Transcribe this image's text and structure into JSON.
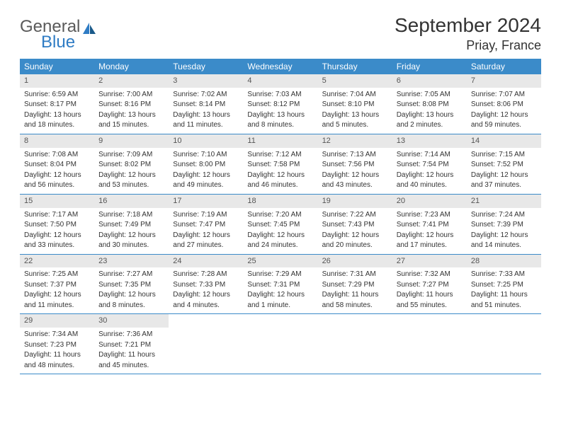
{
  "logo": {
    "word1": "General",
    "word2": "Blue"
  },
  "title": "September 2024",
  "location": "Priay, France",
  "colors": {
    "header_bg": "#3b8bc9",
    "header_text": "#ffffff",
    "daynum_bg": "#e8e8e8",
    "border": "#3b8bc9",
    "logo_gray": "#5a5a5a",
    "logo_blue": "#2f7cc4"
  },
  "weekdays": [
    "Sunday",
    "Monday",
    "Tuesday",
    "Wednesday",
    "Thursday",
    "Friday",
    "Saturday"
  ],
  "weeks": [
    [
      {
        "n": "1",
        "sr": "Sunrise: 6:59 AM",
        "ss": "Sunset: 8:17 PM",
        "d1": "Daylight: 13 hours",
        "d2": "and 18 minutes."
      },
      {
        "n": "2",
        "sr": "Sunrise: 7:00 AM",
        "ss": "Sunset: 8:16 PM",
        "d1": "Daylight: 13 hours",
        "d2": "and 15 minutes."
      },
      {
        "n": "3",
        "sr": "Sunrise: 7:02 AM",
        "ss": "Sunset: 8:14 PM",
        "d1": "Daylight: 13 hours",
        "d2": "and 11 minutes."
      },
      {
        "n": "4",
        "sr": "Sunrise: 7:03 AM",
        "ss": "Sunset: 8:12 PM",
        "d1": "Daylight: 13 hours",
        "d2": "and 8 minutes."
      },
      {
        "n": "5",
        "sr": "Sunrise: 7:04 AM",
        "ss": "Sunset: 8:10 PM",
        "d1": "Daylight: 13 hours",
        "d2": "and 5 minutes."
      },
      {
        "n": "6",
        "sr": "Sunrise: 7:05 AM",
        "ss": "Sunset: 8:08 PM",
        "d1": "Daylight: 13 hours",
        "d2": "and 2 minutes."
      },
      {
        "n": "7",
        "sr": "Sunrise: 7:07 AM",
        "ss": "Sunset: 8:06 PM",
        "d1": "Daylight: 12 hours",
        "d2": "and 59 minutes."
      }
    ],
    [
      {
        "n": "8",
        "sr": "Sunrise: 7:08 AM",
        "ss": "Sunset: 8:04 PM",
        "d1": "Daylight: 12 hours",
        "d2": "and 56 minutes."
      },
      {
        "n": "9",
        "sr": "Sunrise: 7:09 AM",
        "ss": "Sunset: 8:02 PM",
        "d1": "Daylight: 12 hours",
        "d2": "and 53 minutes."
      },
      {
        "n": "10",
        "sr": "Sunrise: 7:10 AM",
        "ss": "Sunset: 8:00 PM",
        "d1": "Daylight: 12 hours",
        "d2": "and 49 minutes."
      },
      {
        "n": "11",
        "sr": "Sunrise: 7:12 AM",
        "ss": "Sunset: 7:58 PM",
        "d1": "Daylight: 12 hours",
        "d2": "and 46 minutes."
      },
      {
        "n": "12",
        "sr": "Sunrise: 7:13 AM",
        "ss": "Sunset: 7:56 PM",
        "d1": "Daylight: 12 hours",
        "d2": "and 43 minutes."
      },
      {
        "n": "13",
        "sr": "Sunrise: 7:14 AM",
        "ss": "Sunset: 7:54 PM",
        "d1": "Daylight: 12 hours",
        "d2": "and 40 minutes."
      },
      {
        "n": "14",
        "sr": "Sunrise: 7:15 AM",
        "ss": "Sunset: 7:52 PM",
        "d1": "Daylight: 12 hours",
        "d2": "and 37 minutes."
      }
    ],
    [
      {
        "n": "15",
        "sr": "Sunrise: 7:17 AM",
        "ss": "Sunset: 7:50 PM",
        "d1": "Daylight: 12 hours",
        "d2": "and 33 minutes."
      },
      {
        "n": "16",
        "sr": "Sunrise: 7:18 AM",
        "ss": "Sunset: 7:49 PM",
        "d1": "Daylight: 12 hours",
        "d2": "and 30 minutes."
      },
      {
        "n": "17",
        "sr": "Sunrise: 7:19 AM",
        "ss": "Sunset: 7:47 PM",
        "d1": "Daylight: 12 hours",
        "d2": "and 27 minutes."
      },
      {
        "n": "18",
        "sr": "Sunrise: 7:20 AM",
        "ss": "Sunset: 7:45 PM",
        "d1": "Daylight: 12 hours",
        "d2": "and 24 minutes."
      },
      {
        "n": "19",
        "sr": "Sunrise: 7:22 AM",
        "ss": "Sunset: 7:43 PM",
        "d1": "Daylight: 12 hours",
        "d2": "and 20 minutes."
      },
      {
        "n": "20",
        "sr": "Sunrise: 7:23 AM",
        "ss": "Sunset: 7:41 PM",
        "d1": "Daylight: 12 hours",
        "d2": "and 17 minutes."
      },
      {
        "n": "21",
        "sr": "Sunrise: 7:24 AM",
        "ss": "Sunset: 7:39 PM",
        "d1": "Daylight: 12 hours",
        "d2": "and 14 minutes."
      }
    ],
    [
      {
        "n": "22",
        "sr": "Sunrise: 7:25 AM",
        "ss": "Sunset: 7:37 PM",
        "d1": "Daylight: 12 hours",
        "d2": "and 11 minutes."
      },
      {
        "n": "23",
        "sr": "Sunrise: 7:27 AM",
        "ss": "Sunset: 7:35 PM",
        "d1": "Daylight: 12 hours",
        "d2": "and 8 minutes."
      },
      {
        "n": "24",
        "sr": "Sunrise: 7:28 AM",
        "ss": "Sunset: 7:33 PM",
        "d1": "Daylight: 12 hours",
        "d2": "and 4 minutes."
      },
      {
        "n": "25",
        "sr": "Sunrise: 7:29 AM",
        "ss": "Sunset: 7:31 PM",
        "d1": "Daylight: 12 hours",
        "d2": "and 1 minute."
      },
      {
        "n": "26",
        "sr": "Sunrise: 7:31 AM",
        "ss": "Sunset: 7:29 PM",
        "d1": "Daylight: 11 hours",
        "d2": "and 58 minutes."
      },
      {
        "n": "27",
        "sr": "Sunrise: 7:32 AM",
        "ss": "Sunset: 7:27 PM",
        "d1": "Daylight: 11 hours",
        "d2": "and 55 minutes."
      },
      {
        "n": "28",
        "sr": "Sunrise: 7:33 AM",
        "ss": "Sunset: 7:25 PM",
        "d1": "Daylight: 11 hours",
        "d2": "and 51 minutes."
      }
    ],
    [
      {
        "n": "29",
        "sr": "Sunrise: 7:34 AM",
        "ss": "Sunset: 7:23 PM",
        "d1": "Daylight: 11 hours",
        "d2": "and 48 minutes."
      },
      {
        "n": "30",
        "sr": "Sunrise: 7:36 AM",
        "ss": "Sunset: 7:21 PM",
        "d1": "Daylight: 11 hours",
        "d2": "and 45 minutes."
      },
      null,
      null,
      null,
      null,
      null
    ]
  ]
}
